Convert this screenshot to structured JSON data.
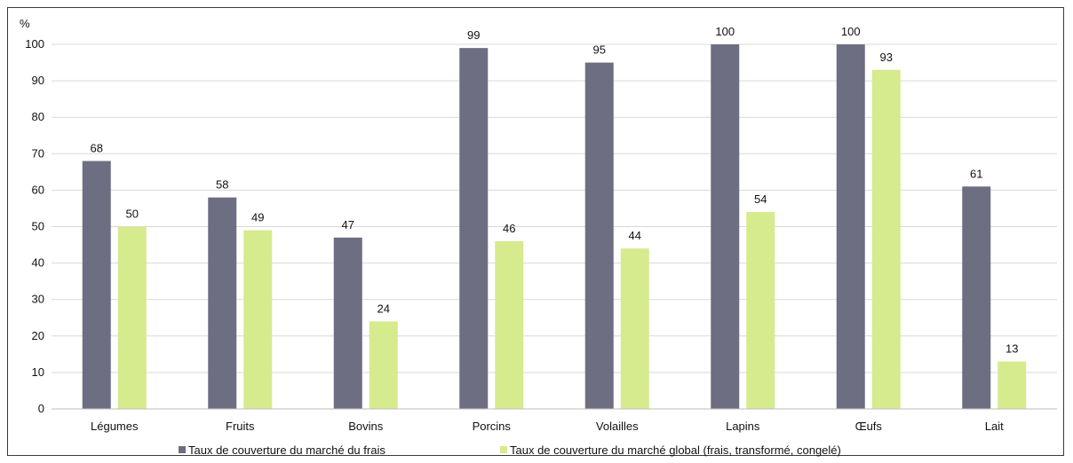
{
  "chart_data": {
    "type": "bar",
    "ylabel": "%",
    "ylim": [
      0,
      100
    ],
    "yticks": [
      0,
      10,
      20,
      30,
      40,
      50,
      60,
      70,
      80,
      90,
      100
    ],
    "grid": true,
    "legend_position": "bottom",
    "categories": [
      "Légumes",
      "Fruits",
      "Bovins",
      "Porcins",
      "Volailles",
      "Lapins",
      "Œufs",
      "Lait"
    ],
    "series": [
      {
        "name": "Taux de couverture du marché du frais",
        "color": "#6e6e82",
        "values": [
          68,
          58,
          47,
          99,
          95,
          100,
          100,
          61
        ]
      },
      {
        "name": "Taux de couverture du marché global (frais, transformé, congelé)",
        "color": "#d6ea8e",
        "values": [
          50,
          49,
          24,
          46,
          44,
          54,
          93,
          13
        ]
      }
    ]
  }
}
